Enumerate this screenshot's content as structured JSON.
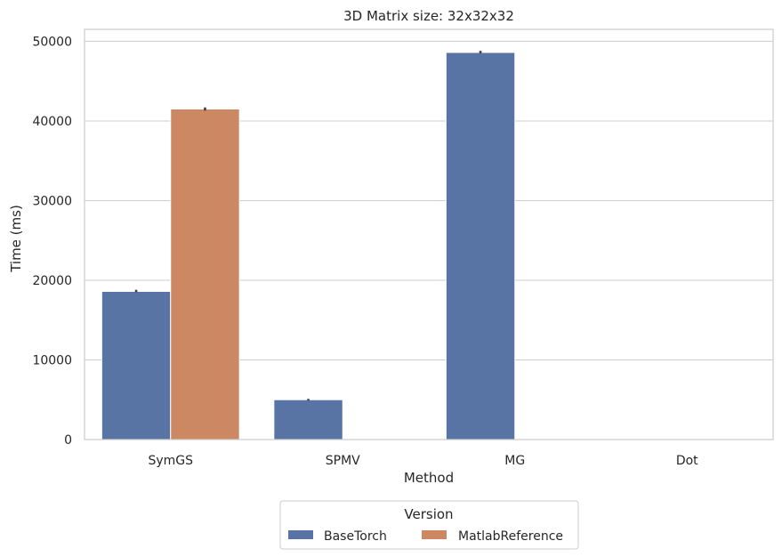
{
  "chart_data": {
    "type": "bar",
    "title": "3D Matrix size: 32x32x32",
    "xlabel": "Method",
    "ylabel": "Time (ms)",
    "categories": [
      "SymGS",
      "SPMV",
      "MG",
      "Dot"
    ],
    "ylim": [
      0,
      51500
    ],
    "yticks": [
      0,
      10000,
      20000,
      30000,
      40000,
      50000
    ],
    "grid": true,
    "legend": {
      "title": "Version",
      "placement": "below-center"
    },
    "series": [
      {
        "name": "BaseTorch",
        "color": "#5874a4",
        "values": [
          18600,
          5000,
          48600,
          0
        ],
        "error_low": [
          18500,
          4900,
          48500,
          0
        ],
        "error_high": [
          18800,
          5100,
          48800,
          0
        ]
      },
      {
        "name": "MatlabReference",
        "color": "#cc8862",
        "values": [
          41500,
          0,
          0,
          0
        ],
        "error_low": [
          41300,
          0,
          0,
          0
        ],
        "error_high": [
          41700,
          0,
          0,
          0
        ]
      }
    ]
  }
}
